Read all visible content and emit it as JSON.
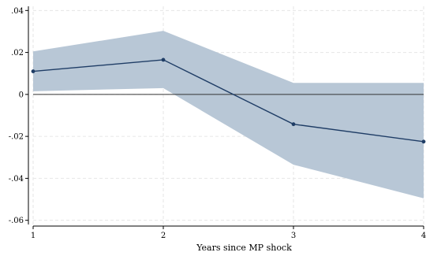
{
  "chart_data": {
    "type": "line",
    "title": "",
    "xlabel": "Years since MP shock",
    "ylabel": "",
    "xlim": [
      1,
      4
    ],
    "ylim": [
      -0.062,
      0.042
    ],
    "x": [
      1,
      2,
      3,
      4
    ],
    "x_tick_labels": [
      "1",
      "2",
      "3",
      "4"
    ],
    "y_ticks": [
      0.04,
      0.02,
      0,
      -0.02,
      -0.04,
      -0.06
    ],
    "y_tick_labels": [
      ".04",
      ".02",
      "0",
      "-.02",
      "-.04",
      "-.06"
    ],
    "series": [
      {
        "values": [
          0.011,
          0.0165,
          -0.0142,
          -0.0225
        ]
      }
    ],
    "confidence_band": {
      "lower": [
        0.0015,
        0.003,
        -0.0335,
        -0.0495
      ],
      "upper": [
        0.0205,
        0.0303,
        0.0055,
        0.0055
      ]
    },
    "reference_line_y": 0,
    "grid": true,
    "colors": {
      "line": "#1f3d66",
      "band": "#b8c7d6",
      "grid": "#e6e6e6",
      "zero_line": "#333333"
    }
  }
}
